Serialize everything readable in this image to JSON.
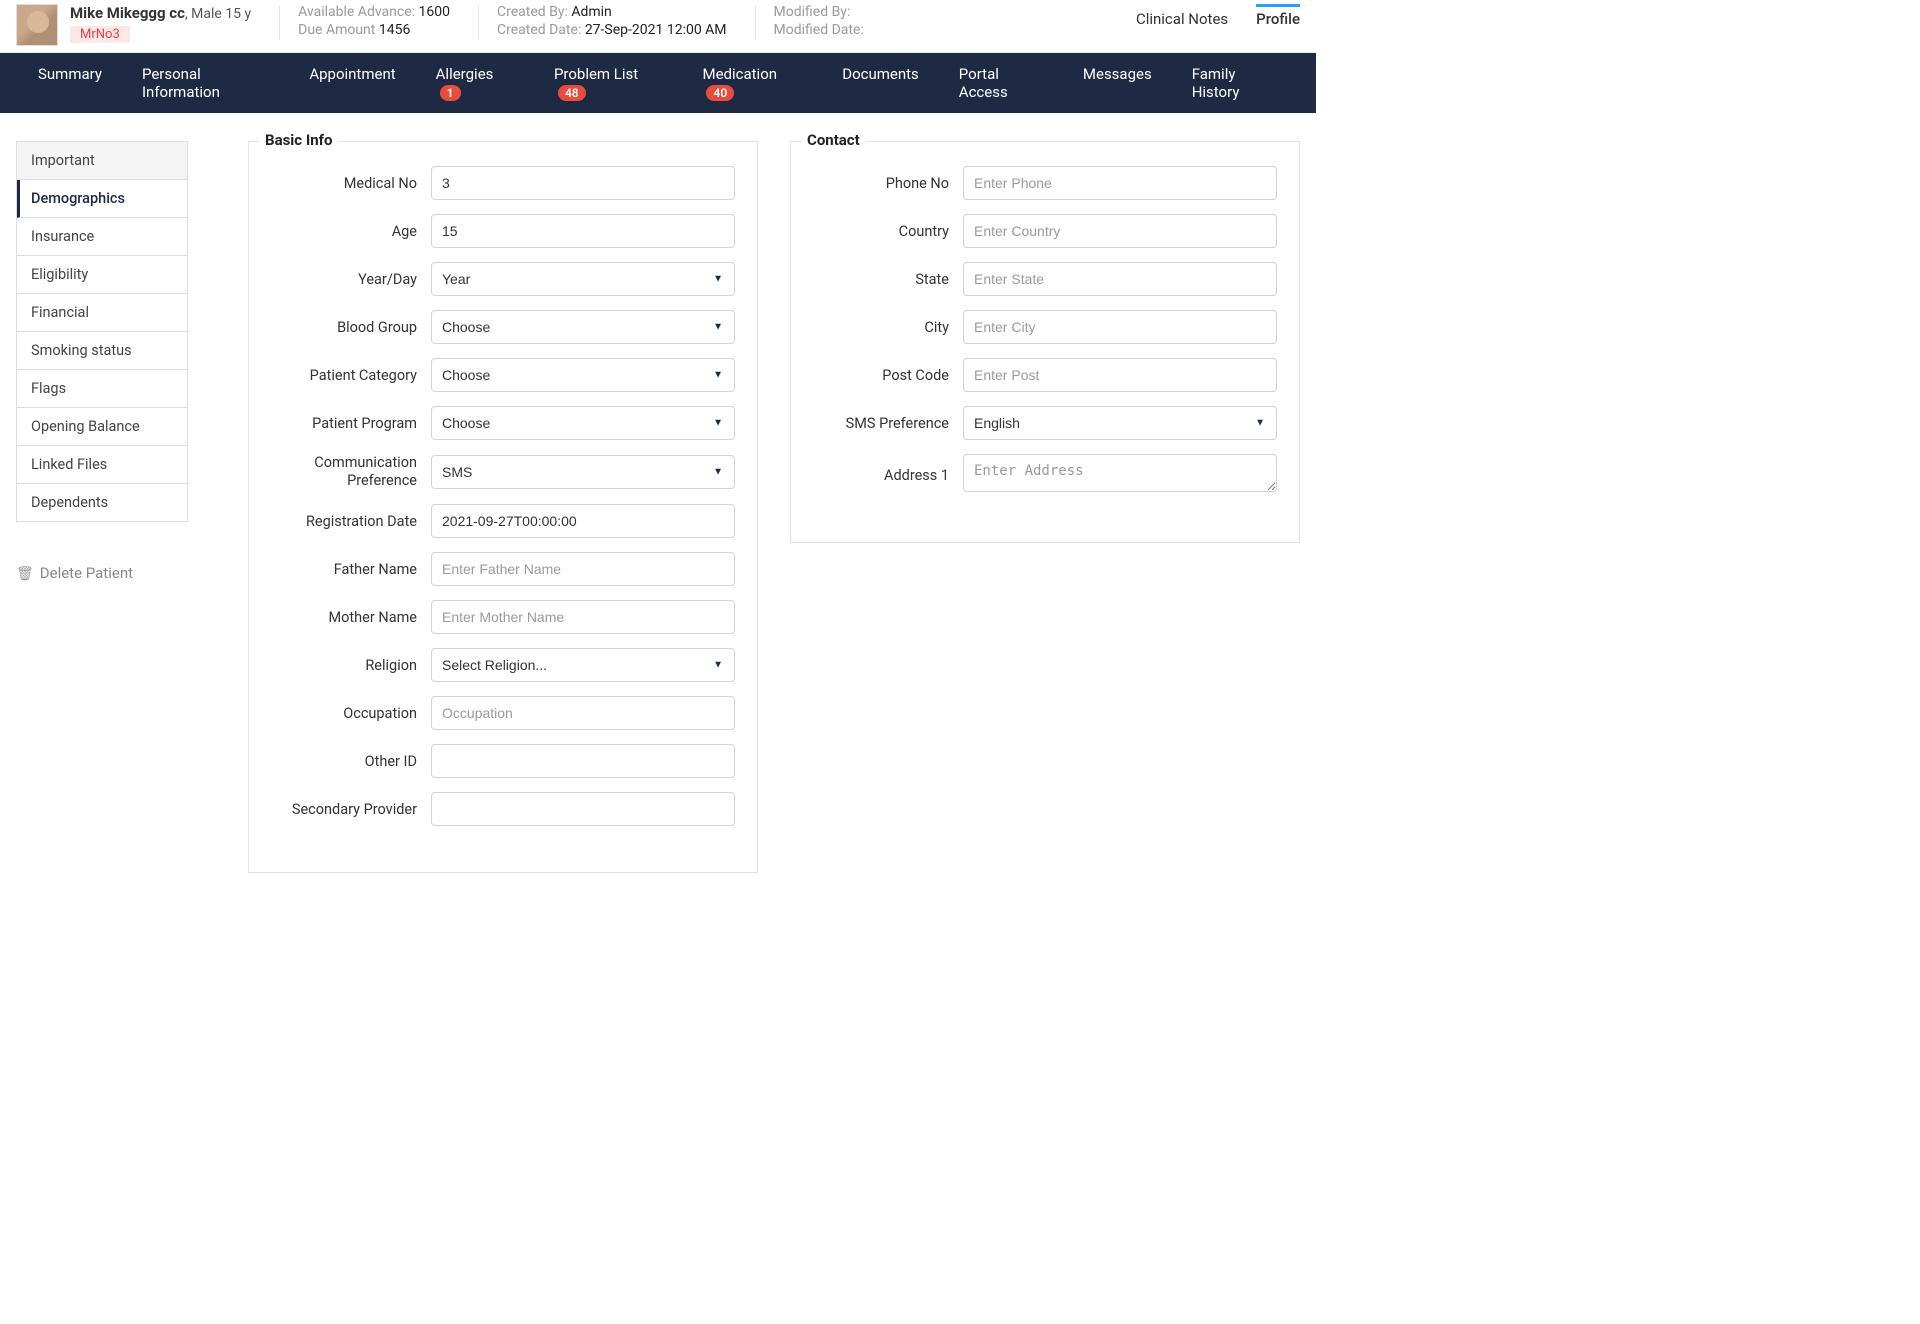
{
  "header": {
    "patient_name": "Mike Mikeggg cc",
    "patient_meta": ", Male 15 y",
    "mrno": "MrNo3",
    "available_advance_label": "Available Advance",
    "available_advance_value": "1600",
    "due_amount_label": "Due Amount",
    "due_amount_value": "1456",
    "created_by_label": "Created By",
    "created_by_value": "Admin",
    "created_date_label": "Created Date",
    "created_date_value": "27-Sep-2021 12:00 AM",
    "modified_by_label": "Modified By",
    "modified_by_value": "",
    "modified_date_label": "Modified Date",
    "modified_date_value": "",
    "links": {
      "clinical_notes": "Clinical Notes",
      "profile": "Profile"
    }
  },
  "nav": {
    "summary": "Summary",
    "personal_info": "Personal Information",
    "appointment": "Appointment",
    "allergies": "Allergies",
    "allergies_badge": "1",
    "problem_list": "Problem List",
    "problem_list_badge": "48",
    "medication": "Medication",
    "medication_badge": "40",
    "documents": "Documents",
    "portal_access": "Portal Access",
    "messages": "Messages",
    "family_history": "Family History"
  },
  "sidebar": {
    "items": {
      "important": "Important",
      "demographics": "Demographics",
      "insurance": "Insurance",
      "eligibility": "Eligibility",
      "financial": "Financial",
      "smoking": "Smoking status",
      "flags": "Flags",
      "opening_balance": "Opening Balance",
      "linked_files": "Linked Files",
      "dependents": "Dependents"
    },
    "delete_label": "Delete Patient"
  },
  "basic_info": {
    "legend": "Basic Info",
    "labels": {
      "medical_no": "Medical No",
      "age": "Age",
      "year_day": "Year/Day",
      "blood_group": "Blood Group",
      "patient_category": "Patient Category",
      "patient_program": "Patient Program",
      "comm_pref": "Communication Preference",
      "reg_date": "Registration Date",
      "father_name": "Father Name",
      "mother_name": "Mother Name",
      "religion": "Religion",
      "occupation": "Occupation",
      "other_id": "Other ID",
      "secondary_provider": "Secondary Provider"
    },
    "values": {
      "medical_no": "3",
      "age": "15",
      "year_day": "Year",
      "blood_group": "Choose",
      "patient_category": "Choose",
      "patient_program": "Choose",
      "comm_pref": "SMS",
      "reg_date": "2021-09-27T00:00:00",
      "religion": "Select Religion..."
    },
    "placeholders": {
      "father_name": "Enter Father Name",
      "mother_name": "Enter Mother Name",
      "occupation": "Occupation"
    }
  },
  "contact": {
    "legend": "Contact",
    "labels": {
      "phone": "Phone No",
      "country": "Country",
      "state": "State",
      "city": "City",
      "post_code": "Post Code",
      "sms_pref": "SMS Preference",
      "address1": "Address 1"
    },
    "values": {
      "sms_pref": "English"
    },
    "placeholders": {
      "phone": "Enter Phone",
      "country": "Enter Country",
      "state": "Enter State",
      "city": "Enter City",
      "post_code": "Enter Post",
      "address1": "Enter Address"
    }
  },
  "colors": {
    "nav_bg": "#1e2a44",
    "badge": "#e74c3c",
    "accent": "#2aa3ef"
  }
}
